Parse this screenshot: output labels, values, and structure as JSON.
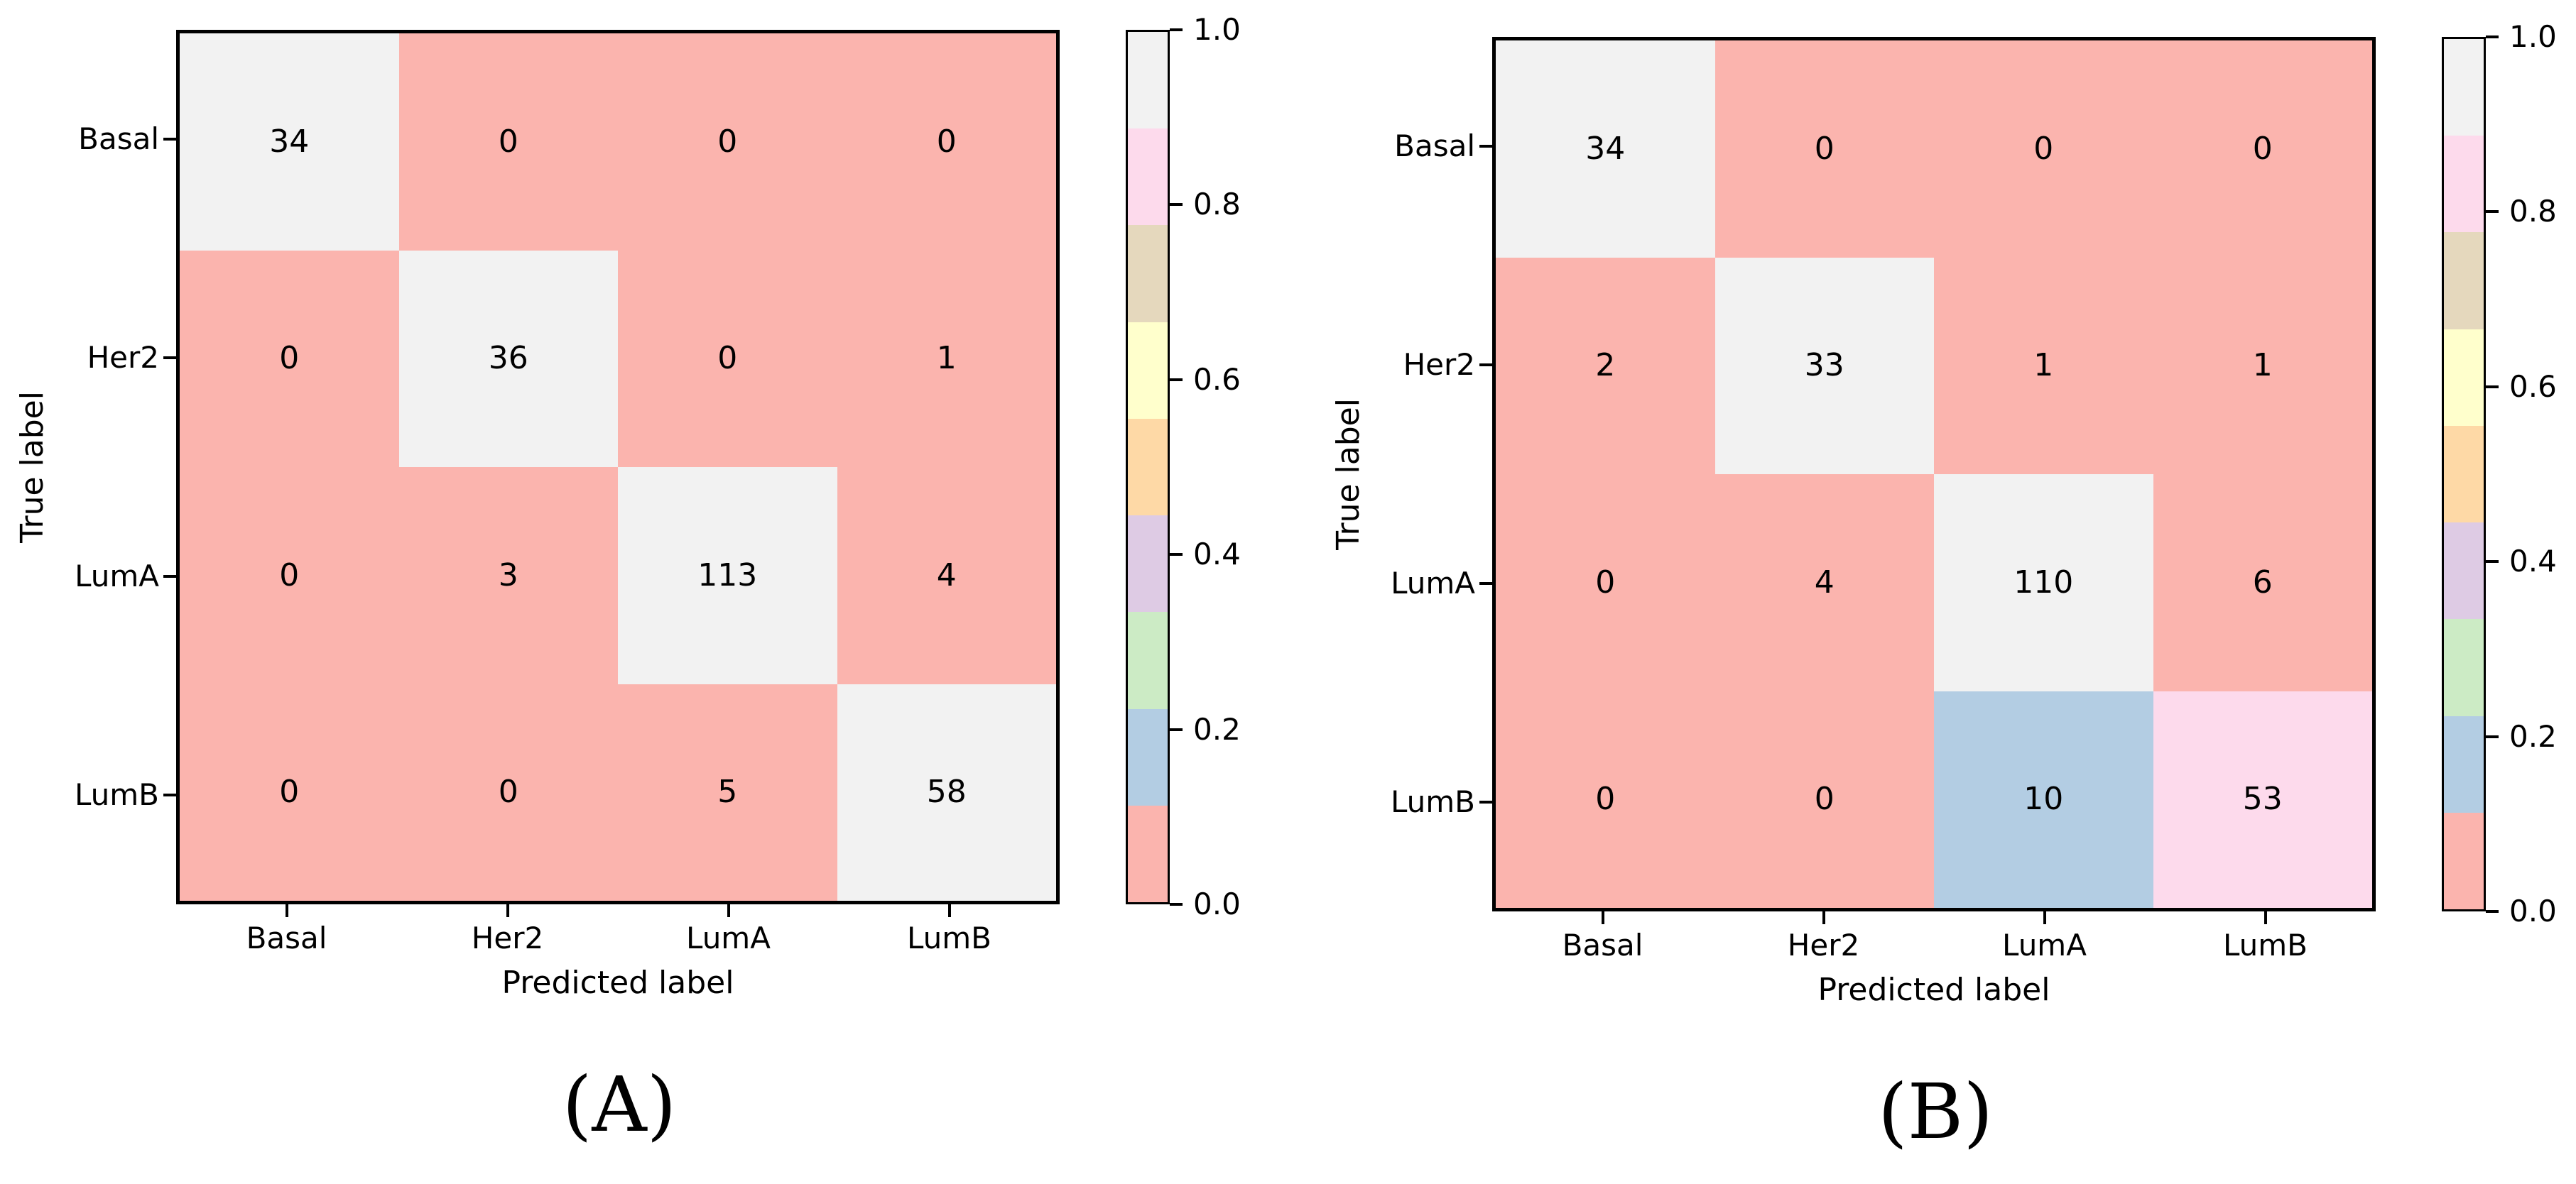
{
  "palette": {
    "salmon": "#fbb4ae",
    "blue": "#b3cde3",
    "green": "#ccebc5",
    "purple": "#decbe4",
    "orange": "#fed9a6",
    "yellow": "#ffffcc",
    "tan": "#e5d8bd",
    "pink": "#fddaec",
    "grey": "#f2f2f2",
    "spine": "#000000",
    "background": "#ffffff"
  },
  "chart_data": [
    {
      "type": "heatmap",
      "title": "(A)",
      "xlabel": "Predicted label",
      "ylabel": "True label",
      "categories": [
        "Basal",
        "Her2",
        "LumA",
        "LumB"
      ],
      "values": [
        [
          34,
          0,
          0,
          0
        ],
        [
          0,
          36,
          0,
          1
        ],
        [
          0,
          3,
          113,
          4
        ],
        [
          0,
          0,
          5,
          58
        ]
      ],
      "cell_colors": [
        [
          "grey",
          "salmon",
          "salmon",
          "salmon"
        ],
        [
          "salmon",
          "grey",
          "salmon",
          "salmon"
        ],
        [
          "salmon",
          "salmon",
          "grey",
          "salmon"
        ],
        [
          "salmon",
          "salmon",
          "salmon",
          "grey"
        ]
      ],
      "colorbar": {
        "ticks": [
          "1.0",
          "0.8",
          "0.6",
          "0.4",
          "0.2",
          "0.0"
        ],
        "tick_values": [
          1.0,
          0.8,
          0.6,
          0.4,
          0.2,
          0.0
        ],
        "range": [
          0,
          1
        ],
        "segments_bottom_to_top": [
          "salmon",
          "blue",
          "green",
          "purple",
          "orange",
          "yellow",
          "tan",
          "pink",
          "grey"
        ]
      }
    },
    {
      "type": "heatmap",
      "title": "(B)",
      "xlabel": "Predicted label",
      "ylabel": "True label",
      "categories": [
        "Basal",
        "Her2",
        "LumA",
        "LumB"
      ],
      "values": [
        [
          34,
          0,
          0,
          0
        ],
        [
          2,
          33,
          1,
          1
        ],
        [
          0,
          4,
          110,
          6
        ],
        [
          0,
          0,
          10,
          53
        ]
      ],
      "cell_colors": [
        [
          "grey",
          "salmon",
          "salmon",
          "salmon"
        ],
        [
          "salmon",
          "grey",
          "salmon",
          "salmon"
        ],
        [
          "salmon",
          "salmon",
          "grey",
          "salmon"
        ],
        [
          "salmon",
          "salmon",
          "blue",
          "pink"
        ]
      ],
      "colorbar": {
        "ticks": [
          "1.0",
          "0.8",
          "0.6",
          "0.4",
          "0.2",
          "0.0"
        ],
        "tick_values": [
          1.0,
          0.8,
          0.6,
          0.4,
          0.2,
          0.0
        ],
        "range": [
          0,
          1
        ],
        "segments_bottom_to_top": [
          "salmon",
          "blue",
          "green",
          "purple",
          "orange",
          "yellow",
          "tan",
          "pink",
          "grey"
        ]
      }
    }
  ]
}
